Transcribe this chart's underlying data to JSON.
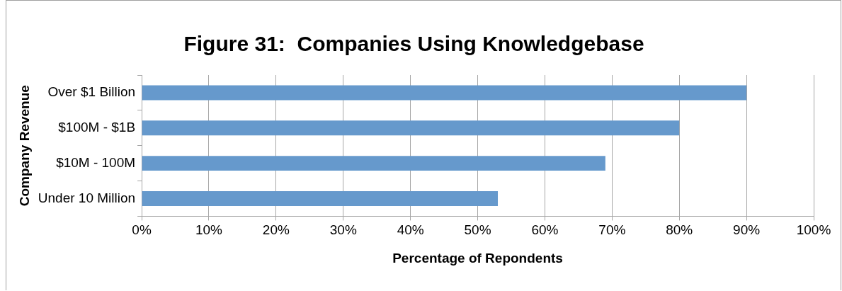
{
  "chart_data": {
    "type": "bar",
    "orientation": "horizontal",
    "title": "Figure 31:  Companies Using Knowledgebase",
    "xlabel": "Percentage of Repondents",
    "ylabel": "Company Revenue",
    "categories": [
      "Over $1 Billion",
      "$100M - $1B",
      "$10M - 100M",
      "Under 10 Million"
    ],
    "values": [
      90,
      80,
      69,
      53
    ],
    "color": "#6699cc",
    "xlim": [
      0,
      100
    ],
    "xticks": [
      {
        "value": 0,
        "label": "0%"
      },
      {
        "value": 10,
        "label": "10%"
      },
      {
        "value": 20,
        "label": "20%"
      },
      {
        "value": 30,
        "label": "30%"
      },
      {
        "value": 40,
        "label": "40%"
      },
      {
        "value": 50,
        "label": "50%"
      },
      {
        "value": 60,
        "label": "60%"
      },
      {
        "value": 70,
        "label": "70%"
      },
      {
        "value": 80,
        "label": "80%"
      },
      {
        "value": 90,
        "label": "90%"
      },
      {
        "value": 100,
        "label": "100%"
      }
    ],
    "grid": "x",
    "legend": false
  }
}
